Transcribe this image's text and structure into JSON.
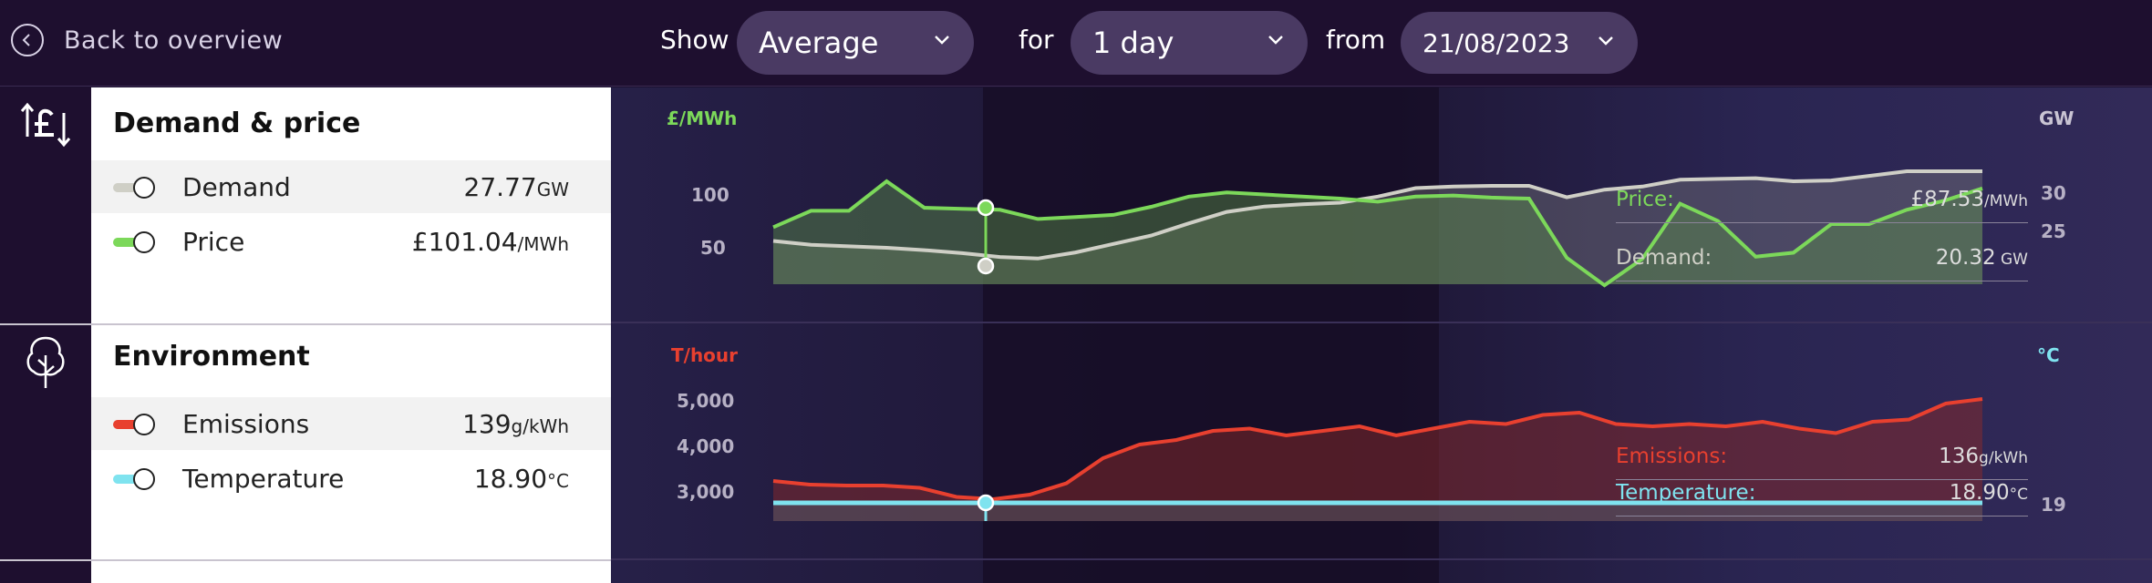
{
  "topbar": {
    "back_label": "Back to overview",
    "show_label": "Show",
    "show_value": "Average",
    "for_label": "for",
    "for_value": "1 day",
    "from_label": "from",
    "from_value": "21/08/2023"
  },
  "sections": [
    {
      "title": "Demand & price",
      "icon": "pound-arrows-icon",
      "rows": [
        {
          "label": "Demand",
          "value": "27.77",
          "unit": "GW",
          "color": "#cfcfc6"
        },
        {
          "label": "Price",
          "value": "£101.04",
          "unit": "/MWh",
          "color": "#7cd85a"
        }
      ]
    },
    {
      "title": "Environment",
      "icon": "tree-icon",
      "rows": [
        {
          "label": "Emissions",
          "value": "139",
          "unit": "g/kWh",
          "color": "#e8402f"
        },
        {
          "label": "Temperature",
          "value": "18.90",
          "unit": "°C",
          "color": "#7fe3ef"
        }
      ]
    }
  ],
  "chart1": {
    "left_unit": "£/MWh",
    "right_unit": "GW",
    "left_ticks": [
      "100",
      "50"
    ],
    "right_ticks": [
      "30",
      "25"
    ],
    "tooltip": [
      {
        "label": "Price:",
        "value": "£87.53",
        "unit": "/MWh",
        "color": "#7cd85a"
      },
      {
        "label": "Demand:",
        "value": "20.32",
        "unit": " GW",
        "color": "#cfcfc6"
      }
    ]
  },
  "chart2": {
    "left_unit": "T/hour",
    "right_unit": "°C",
    "left_ticks": [
      "5,000",
      "4,000",
      "3,000"
    ],
    "right_ticks": [
      "19"
    ],
    "tooltip": [
      {
        "label": "Emissions:",
        "value": "136",
        "unit": "g/kWh",
        "color": "#e8402f"
      },
      {
        "label": "Temperature:",
        "value": "18.90",
        "unit": "°C",
        "color": "#7fe3ef"
      }
    ]
  },
  "chart_data": [
    {
      "type": "line",
      "title": "",
      "series": [
        {
          "name": "Price",
          "values": [
            72,
            88,
            88,
            117,
            91,
            90,
            89,
            80,
            82,
            84,
            92,
            102,
            106,
            104,
            102,
            100,
            97,
            102,
            103,
            101,
            100,
            42,
            15,
            41,
            95,
            78,
            43,
            47,
            75,
            75,
            89,
            98,
            110
          ]
        },
        {
          "name": "Demand",
          "values": [
            22.8,
            22.3,
            22.1,
            21.9,
            21.6,
            21.2,
            20.7,
            20.5,
            21.3,
            22.4,
            23.5,
            25.1,
            26.6,
            27.3,
            27.6,
            27.8,
            28.6,
            29.7,
            29.9,
            30.0,
            30.0,
            28.5,
            29.5,
            29.9,
            30.8,
            30.9,
            31.0,
            30.6,
            30.7,
            31.3,
            31.9,
            31.9,
            31.9
          ]
        }
      ],
      "y_left_unit": "£/MWh",
      "y_right_unit": "GW"
    },
    {
      "type": "area",
      "title": "",
      "series": [
        {
          "name": "Emissions",
          "values": [
            3200,
            3120,
            3100,
            3100,
            3050,
            2850,
            2800,
            2900,
            3150,
            3700,
            4000,
            4100,
            4300,
            4350,
            4200,
            4300,
            4400,
            4200,
            4350,
            4500,
            4450,
            4650,
            4700,
            4450,
            4400,
            4450,
            4400,
            4500,
            4350,
            4250,
            4500,
            4550,
            4900,
            5000
          ]
        },
        {
          "name": "Temperature",
          "values": [
            18.9,
            18.9,
            18.9,
            18.9,
            18.9,
            18.9,
            18.9,
            18.9,
            18.9,
            18.9,
            18.9,
            18.9,
            18.9,
            18.9,
            18.9,
            18.9,
            18.9,
            18.9,
            18.9,
            18.9,
            18.9,
            18.9,
            18.9,
            18.9,
            18.9,
            18.9,
            18.9,
            18.9,
            18.9,
            18.9,
            18.9,
            18.9,
            18.9,
            18.9
          ]
        }
      ],
      "y_left_unit": "T/hour",
      "y_right_unit": "°C"
    }
  ]
}
